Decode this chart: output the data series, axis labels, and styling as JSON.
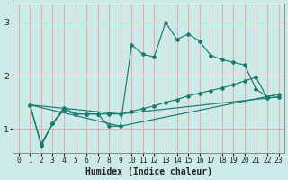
{
  "title": "",
  "xlabel": "Humidex (Indice chaleur)",
  "ylabel": "",
  "bg_color": "#cceae8",
  "grid_color": "#e8a0a0",
  "line_color": "#1a7a6e",
  "xlim": [
    -0.5,
    23.5
  ],
  "ylim": [
    0.55,
    3.35
  ],
  "yticks": [
    1,
    2,
    3
  ],
  "xticks": [
    0,
    1,
    2,
    3,
    4,
    5,
    6,
    7,
    8,
    9,
    10,
    11,
    12,
    13,
    14,
    15,
    16,
    17,
    18,
    19,
    20,
    21,
    22,
    23
  ],
  "series": [
    {
      "x": [
        1,
        2,
        3,
        4,
        5,
        6,
        7,
        8,
        9,
        10,
        11,
        12,
        13,
        14,
        15,
        16,
        17,
        18,
        19,
        20,
        21,
        22,
        23
      ],
      "y": [
        1.45,
        0.72,
        1.1,
        1.35,
        1.28,
        1.28,
        1.28,
        1.05,
        1.05,
        2.58,
        2.4,
        2.35,
        3.0,
        2.68,
        2.78,
        2.65,
        2.38,
        2.3,
        2.25,
        2.2,
        1.75,
        1.6,
        1.65
      ],
      "marker": true
    },
    {
      "x": [
        1,
        2,
        3,
        4,
        5,
        6,
        7,
        8,
        9,
        10,
        11,
        12,
        13,
        14,
        15,
        16,
        17,
        18,
        19,
        20,
        21,
        22,
        23
      ],
      "y": [
        1.45,
        0.68,
        1.1,
        1.4,
        1.28,
        1.28,
        1.28,
        1.28,
        1.28,
        1.33,
        1.38,
        1.43,
        1.5,
        1.55,
        1.62,
        1.67,
        1.72,
        1.77,
        1.83,
        1.9,
        1.97,
        1.58,
        1.6
      ],
      "marker": true
    },
    {
      "x": [
        1,
        9,
        23
      ],
      "y": [
        1.45,
        1.05,
        1.65
      ],
      "marker": false
    },
    {
      "x": [
        1,
        9,
        23
      ],
      "y": [
        1.45,
        1.28,
        1.6
      ],
      "marker": false
    }
  ],
  "xlabel_fontsize": 7,
  "tick_fontsize": 5.8,
  "border_color": "#888888"
}
